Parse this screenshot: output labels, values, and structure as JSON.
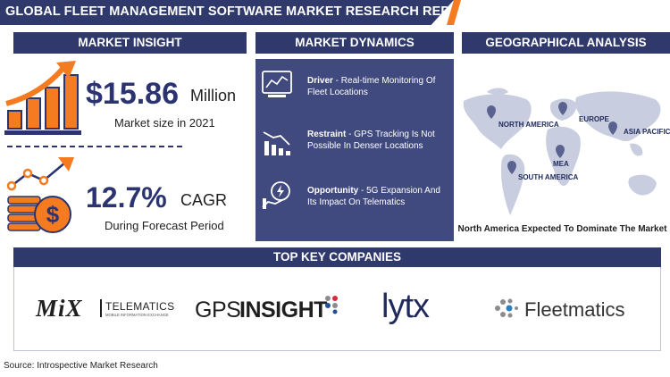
{
  "header": {
    "title": "GLOBAL FLEET MANAGEMENT SOFTWARE MARKET RESEARCH REPORT"
  },
  "market_insight": {
    "heading": "MARKET INSIGHT",
    "size_value": "$15.86",
    "size_unit": "Million",
    "size_caption": "Market size in 2021",
    "cagr_value": "12.7%",
    "cagr_unit": "CAGR",
    "cagr_caption": "During Forecast Period",
    "icons": [
      "bar-growth-icon",
      "money-growth-icon"
    ],
    "accent_color": "#f47b20"
  },
  "market_dynamics": {
    "heading": "MARKET DYNAMICS",
    "items": [
      {
        "label": "Driver",
        "text": " - Real-time Monitoring Of Fleet Locations",
        "icon": "monitor-chart-icon"
      },
      {
        "label": "Restraint",
        "text": " - GPS Tracking Is Not Possible In Denser Locations",
        "icon": "decline-chart-icon"
      },
      {
        "label": "Opportunity",
        "text": " - 5G Expansion And Its Impact On Telematics",
        "icon": "hand-energy-icon"
      }
    ],
    "box_color": "#414a7f"
  },
  "geography": {
    "heading": "GEOGRAPHICAL ANALYSIS",
    "regions": [
      "NORTH AMERICA",
      "EUROPE",
      "ASIA PACIFIC",
      "MEA",
      "SOUTH AMERICA"
    ],
    "caption": "North America Expected To Dominate The Market"
  },
  "companies": {
    "heading": "TOP KEY COMPANIES",
    "mix": {
      "name": "MiX",
      "sub": "TELEMATICS",
      "tag": "MOBILE INFORMATION EXCHANGE"
    },
    "gps": {
      "a": "GPS",
      "b": "INSIGHT"
    },
    "lytx": "lytx",
    "fleetmatics": "Fleetmatics"
  },
  "source": "Source: Introspective Market Research",
  "brand_color": "#30396c"
}
